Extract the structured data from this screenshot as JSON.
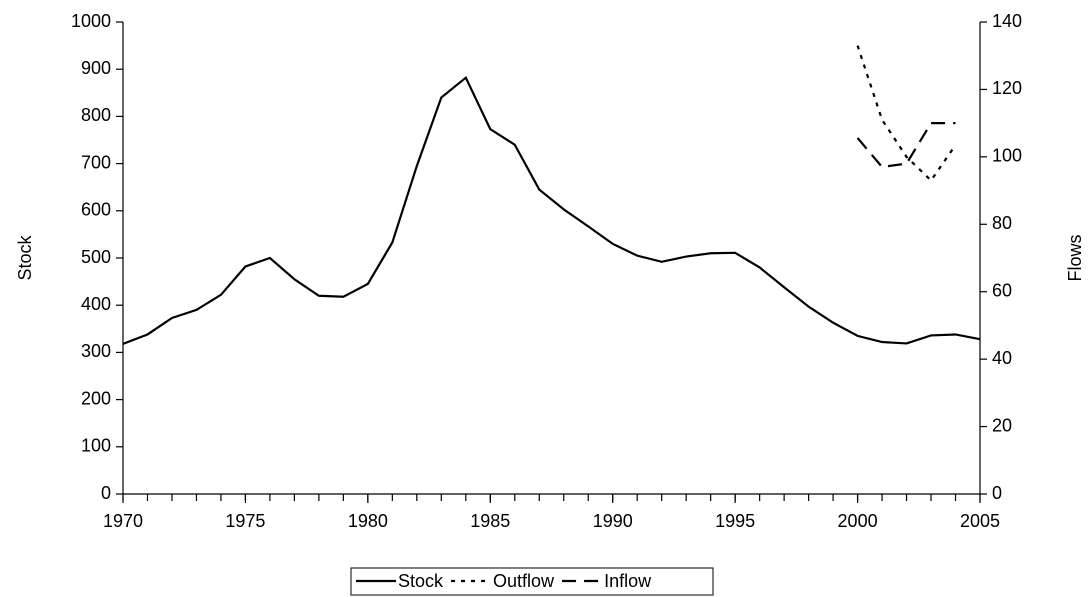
{
  "chart_data": {
    "type": "line",
    "y_label": "Stock",
    "y2_label": "Flows",
    "x": [
      1970,
      1971,
      1972,
      1973,
      1974,
      1975,
      1976,
      1977,
      1978,
      1979,
      1980,
      1981,
      1982,
      1983,
      1984,
      1985,
      1986,
      1987,
      1988,
      1989,
      1990,
      1991,
      1992,
      1993,
      1994,
      1995,
      1996,
      1997,
      1998,
      1999,
      2000,
      2001,
      2002,
      2003,
      2004,
      2005
    ],
    "xlim": [
      1970,
      2005
    ],
    "xticks": [
      1970,
      1975,
      1980,
      1985,
      1990,
      1995,
      2000,
      2005
    ],
    "ylim": [
      0,
      1000
    ],
    "yticks": [
      0,
      100,
      200,
      300,
      400,
      500,
      600,
      700,
      800,
      900,
      1000
    ],
    "y2lim": [
      0,
      140
    ],
    "y2ticks": [
      0,
      20,
      40,
      60,
      80,
      100,
      120,
      140
    ],
    "grid": false,
    "legend_position": "bottom",
    "series": [
      {
        "name": "Stock",
        "color": "#000000",
        "dash": "solid",
        "values": [
          318,
          338,
          373,
          390,
          422,
          482,
          500,
          455,
          420,
          418,
          445,
          533,
          695,
          840,
          882,
          773,
          740,
          645,
          603,
          567,
          530,
          505,
          492,
          503,
          510,
          511,
          480,
          438,
          397,
          363,
          335,
          322,
          319,
          336,
          338,
          328
        ]
      },
      {
        "name": "Outflow",
        "color": "#000000",
        "dash": "dotted",
        "axis": "y2",
        "values": [
          null,
          null,
          null,
          null,
          null,
          null,
          null,
          null,
          null,
          null,
          null,
          null,
          null,
          null,
          null,
          null,
          null,
          null,
          null,
          null,
          null,
          null,
          null,
          null,
          null,
          null,
          null,
          null,
          null,
          null,
          133,
          111,
          100,
          93,
          103.5,
          null
        ]
      },
      {
        "name": "Inflow",
        "color": "#000000",
        "dash": "dashed",
        "axis": "y2",
        "values": [
          null,
          null,
          null,
          null,
          null,
          null,
          null,
          null,
          null,
          null,
          null,
          null,
          null,
          null,
          null,
          null,
          null,
          null,
          null,
          null,
          null,
          null,
          null,
          null,
          null,
          null,
          null,
          null,
          null,
          null,
          105.6,
          97,
          98,
          110,
          110,
          null
        ]
      }
    ]
  }
}
